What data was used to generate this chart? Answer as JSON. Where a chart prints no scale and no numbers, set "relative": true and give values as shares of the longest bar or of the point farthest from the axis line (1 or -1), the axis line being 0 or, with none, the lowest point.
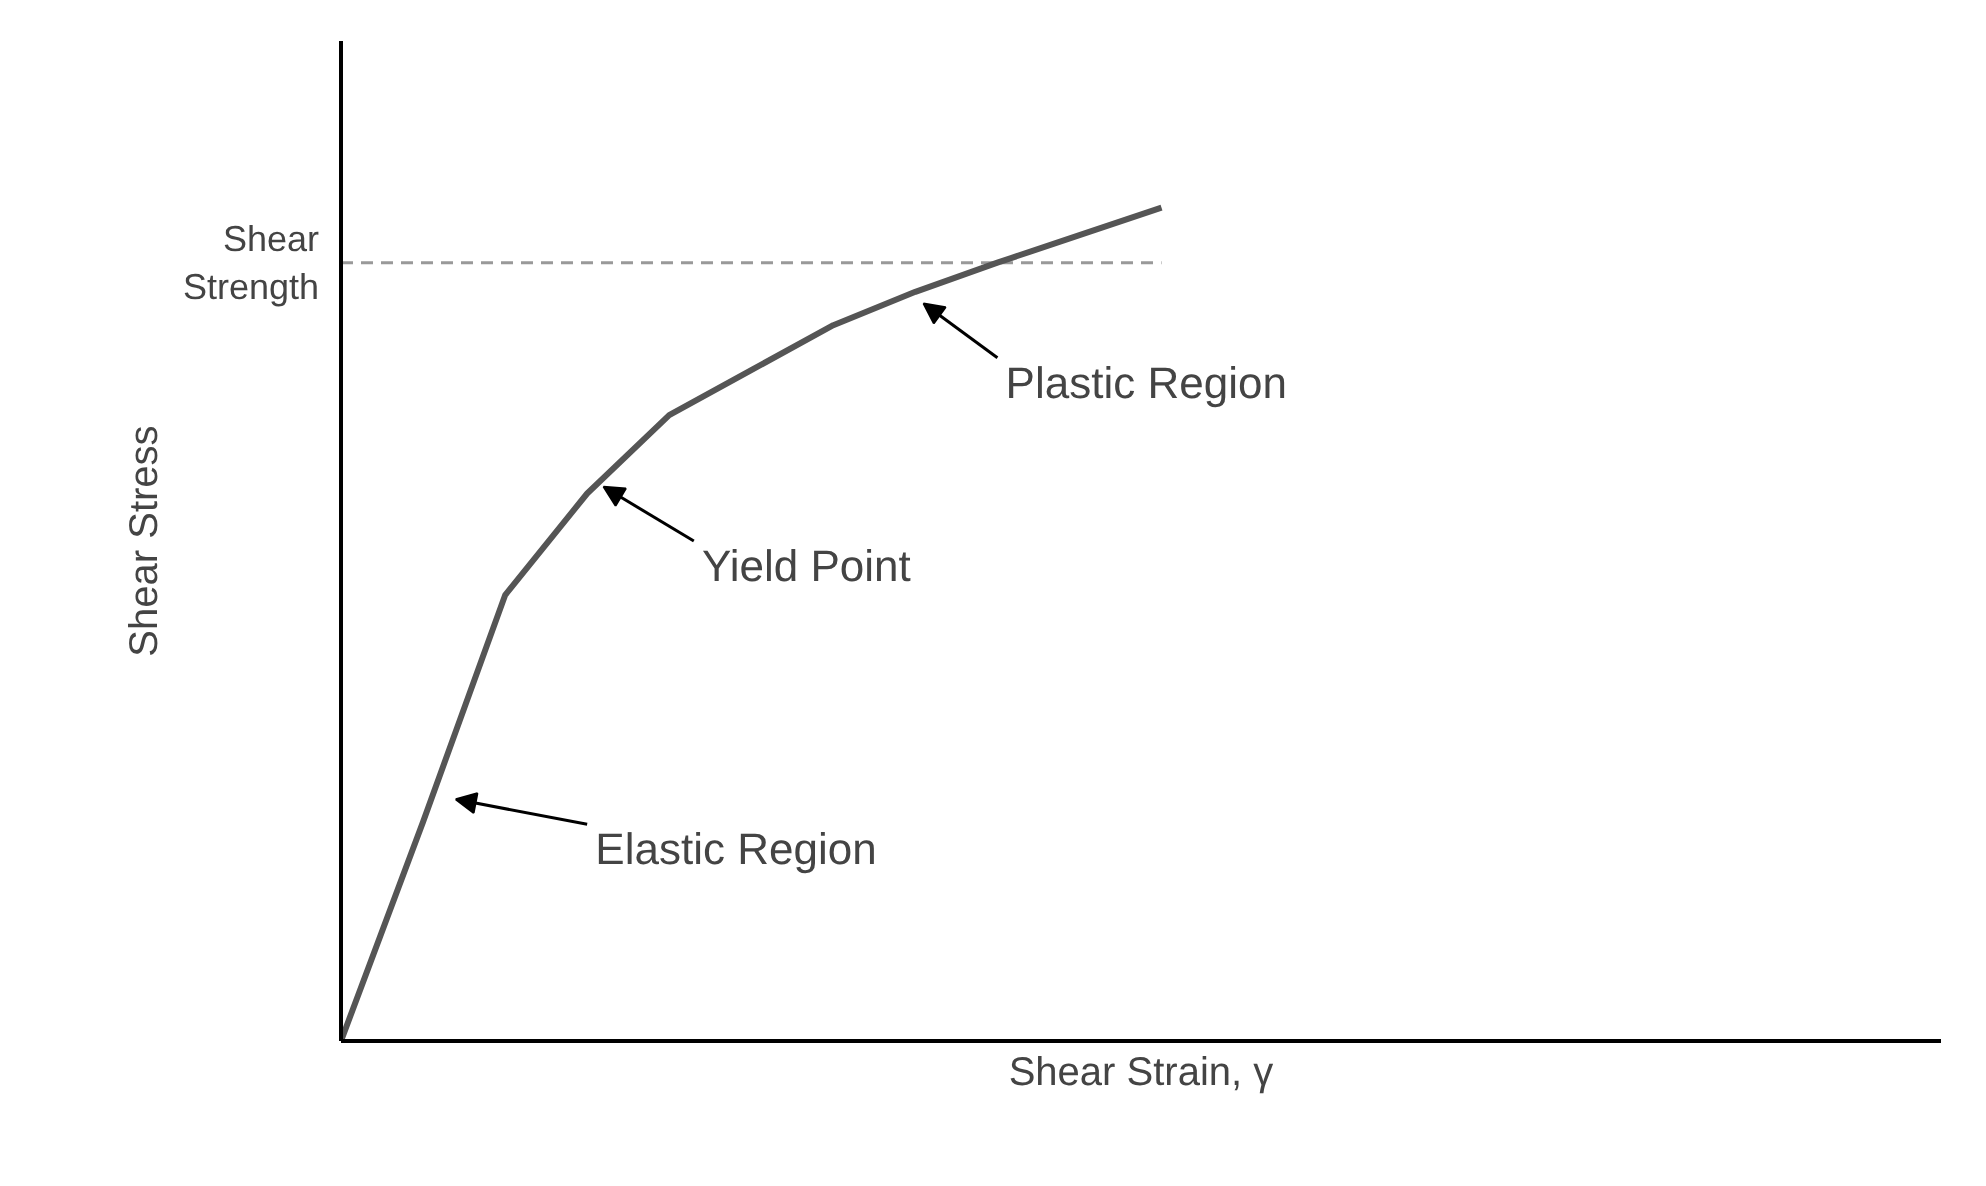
{
  "chart_data": {
    "type": "line",
    "relative": true,
    "xlabel": "Shear Strain, γ",
    "ylabel": "Shear Stress",
    "categories": [
      null,
      null,
      null,
      null,
      null,
      null,
      null,
      null,
      null,
      null,
      null,
      null,
      null,
      null,
      null,
      null,
      null,
      null,
      null,
      null
    ],
    "series": [
      {
        "color": "#555555",
        "values": [
          0,
          0.263,
          0.535,
          0.657,
          0.751,
          0.805,
          0.859,
          0.899,
          0.934,
          0.967,
          1.0,
          null,
          null,
          null,
          null,
          null,
          null,
          null,
          null,
          null
        ]
      }
    ],
    "ref_lines": [
      {
        "axis": "y",
        "value": 0.934,
        "label": "Shear Strength",
        "line_style": "dashed",
        "color": "#999999"
      }
    ],
    "annotations": [
      "Plastic Region",
      "Yield Point",
      "Elastic Region"
    ]
  }
}
